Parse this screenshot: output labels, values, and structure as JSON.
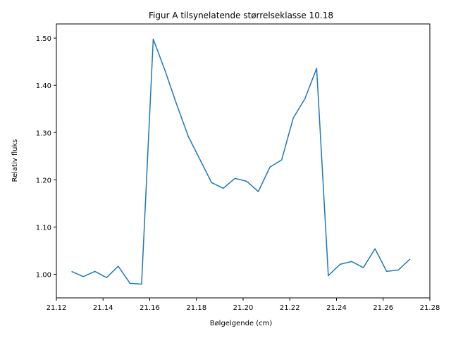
{
  "chart_data": {
    "type": "line",
    "title": "Figur A tilsynelatende størrelseklasse 10.18",
    "xlabel": "Bølgelgende (cm)",
    "ylabel": "Relativ fluks",
    "xlim": [
      21.12,
      21.28
    ],
    "ylim": [
      0.95,
      1.53
    ],
    "grid": false,
    "line_color": "#1f77b4",
    "x_ticks": [
      {
        "value": 21.12,
        "label": "21.12"
      },
      {
        "value": 21.14,
        "label": "21.14"
      },
      {
        "value": 21.16,
        "label": "21.16"
      },
      {
        "value": 21.18,
        "label": "21.18"
      },
      {
        "value": 21.2,
        "label": "21.20"
      },
      {
        "value": 21.22,
        "label": "21.22"
      },
      {
        "value": 21.24,
        "label": "21.24"
      },
      {
        "value": 21.26,
        "label": "21.26"
      },
      {
        "value": 21.28,
        "label": "21.28"
      }
    ],
    "y_ticks": [
      {
        "value": 1.0,
        "label": "1.00"
      },
      {
        "value": 1.1,
        "label": "1.10"
      },
      {
        "value": 1.2,
        "label": "1.20"
      },
      {
        "value": 1.3,
        "label": "1.30"
      },
      {
        "value": 1.4,
        "label": "1.40"
      },
      {
        "value": 1.5,
        "label": "1.50"
      }
    ],
    "series": [
      {
        "x": [
          21.1265,
          21.1315,
          21.1365,
          21.1415,
          21.1465,
          21.1515,
          21.1565,
          21.1615,
          21.1665,
          21.1715,
          21.1765,
          21.1815,
          21.1865,
          21.1915,
          21.1965,
          21.2015,
          21.2065,
          21.2115,
          21.2165,
          21.2215,
          21.2265,
          21.2315,
          21.2365,
          21.2415,
          21.2465,
          21.2515,
          21.2565,
          21.2615,
          21.2665,
          21.2715
        ],
        "values": [
          1.006,
          0.995,
          1.006,
          0.993,
          1.017,
          0.981,
          0.979,
          1.498,
          1.432,
          1.36,
          1.292,
          1.243,
          1.194,
          1.182,
          1.203,
          1.197,
          1.175,
          1.227,
          1.242,
          1.331,
          1.372,
          1.436,
          0.997,
          1.021,
          1.027,
          1.014,
          1.054,
          1.006,
          1.009,
          1.032
        ]
      }
    ]
  }
}
